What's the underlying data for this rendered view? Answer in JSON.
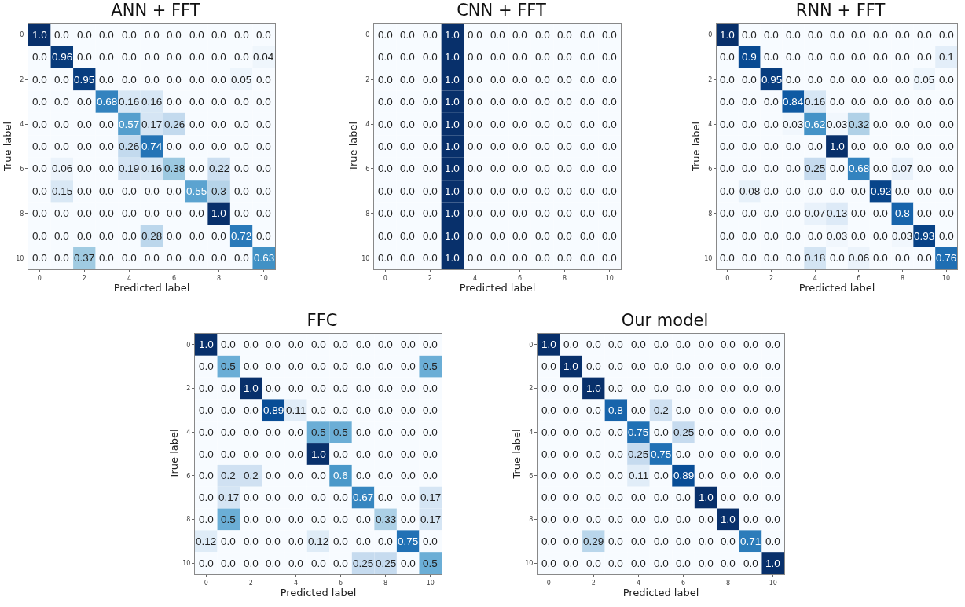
{
  "chart_data": [
    {
      "type": "heatmap",
      "title": "ANN + FFT",
      "xlabel": "Predicted label",
      "ylabel": "True label",
      "categories": [
        "0",
        null,
        "2",
        null,
        "4",
        null,
        "6",
        null,
        "8",
        null,
        "10"
      ],
      "y_categories": [
        "0",
        null,
        "2",
        null,
        "4",
        null,
        "6",
        null,
        "8",
        null,
        "10"
      ],
      "cells": [
        [
          1,
          0,
          0,
          0,
          0,
          0,
          0,
          0,
          0,
          0,
          0
        ],
        [
          0,
          0.96,
          0,
          0,
          0,
          0,
          0,
          0,
          0,
          0,
          0.04
        ],
        [
          0,
          0,
          0.95,
          0,
          0,
          0,
          0,
          0,
          0,
          0.05,
          0
        ],
        [
          0,
          0,
          0,
          0.68,
          0.16,
          0.16,
          0,
          0,
          0,
          0,
          0
        ],
        [
          0,
          0,
          0,
          0,
          0.57,
          0.17,
          0.26,
          0,
          0,
          0,
          0
        ],
        [
          0,
          0,
          0,
          0,
          0.26,
          0.74,
          0,
          0,
          0,
          0,
          0
        ],
        [
          0,
          0.06,
          0,
          0,
          0.19,
          0.16,
          0.38,
          0,
          0.22,
          0,
          0
        ],
        [
          0,
          0.15,
          0,
          0,
          0,
          0,
          0,
          0.55,
          0.3,
          0,
          0
        ],
        [
          0,
          0,
          0,
          0,
          0,
          0,
          0,
          0,
          1,
          0,
          0
        ],
        [
          0,
          0,
          0,
          0,
          0,
          0.28,
          0,
          0,
          0,
          0.72,
          0
        ],
        [
          0,
          0,
          0.37,
          0,
          0,
          0,
          0,
          0,
          0,
          0,
          0.63
        ]
      ],
      "cell_labels": [
        [
          "1.0",
          "0.0",
          "0.0",
          "0.0",
          "0.0",
          "0.0",
          "0.0",
          "0.0",
          "0.0",
          "0.0",
          "0.0"
        ],
        [
          "0.0",
          "0.96",
          "0.0",
          "0.0",
          "0.0",
          "0.0",
          "0.0",
          "0.0",
          "0.0",
          "0.0",
          "0.04"
        ],
        [
          "0.0",
          "0.0",
          "0.95",
          "0.0",
          "0.0",
          "0.0",
          "0.0",
          "0.0",
          "0.0",
          "0.05",
          "0.0"
        ],
        [
          "0.0",
          "0.0",
          "0.0",
          "0.68",
          "0.16",
          "0.16",
          "0.0",
          "0.0",
          "0.0",
          "0.0",
          "0.0"
        ],
        [
          "0.0",
          "0.0",
          "0.0",
          "0.0",
          "0.57",
          "0.17",
          "0.26",
          "0.0",
          "0.0",
          "0.0",
          "0.0"
        ],
        [
          "0.0",
          "0.0",
          "0.0",
          "0.0",
          "0.26",
          "0.74",
          "0.0",
          "0.0",
          "0.0",
          "0.0",
          "0.0"
        ],
        [
          "0.0",
          "0.06",
          "0.0",
          "0.0",
          "0.19",
          "0.16",
          "0.38",
          "0.0",
          "0.22",
          "0.0",
          "0.0"
        ],
        [
          "0.0",
          "0.15",
          "0.0",
          "0.0",
          "0.0",
          "0.0",
          "0.0",
          "0.55",
          "0.3",
          "0.0",
          "0.0"
        ],
        [
          "0.0",
          "0.0",
          "0.0",
          "0.0",
          "0.0",
          "0.0",
          "0.0",
          "0.0",
          "1.0",
          "0.0",
          "0.0"
        ],
        [
          "0.0",
          "0.0",
          "0.0",
          "0.0",
          "0.0",
          "0.28",
          "0.0",
          "0.0",
          "0.0",
          "0.72",
          "0.0"
        ],
        [
          "0.0",
          "0.0",
          "0.37",
          "0.0",
          "0.0",
          "0.0",
          "0.0",
          "0.0",
          "0.0",
          "0.0",
          "0.63"
        ]
      ]
    },
    {
      "type": "heatmap",
      "title": "CNN + FFT",
      "xlabel": "Predicted label",
      "ylabel": "True label",
      "categories": [
        "0",
        null,
        "2",
        null,
        "4",
        null,
        "6",
        null,
        "8",
        null,
        "10"
      ],
      "y_categories": [
        "0",
        null,
        "2",
        null,
        "4",
        null,
        "6",
        null,
        "8",
        null,
        "10"
      ],
      "cells": [
        [
          0,
          0,
          0,
          1,
          0,
          0,
          0,
          0,
          0,
          0,
          0
        ],
        [
          0,
          0,
          0,
          1,
          0,
          0,
          0,
          0,
          0,
          0,
          0
        ],
        [
          0,
          0,
          0,
          1,
          0,
          0,
          0,
          0,
          0,
          0,
          0
        ],
        [
          0,
          0,
          0,
          1,
          0,
          0,
          0,
          0,
          0,
          0,
          0
        ],
        [
          0,
          0,
          0,
          1,
          0,
          0,
          0,
          0,
          0,
          0,
          0
        ],
        [
          0,
          0,
          0,
          1,
          0,
          0,
          0,
          0,
          0,
          0,
          0
        ],
        [
          0,
          0,
          0,
          1,
          0,
          0,
          0,
          0,
          0,
          0,
          0
        ],
        [
          0,
          0,
          0,
          1,
          0,
          0,
          0,
          0,
          0,
          0,
          0
        ],
        [
          0,
          0,
          0,
          1,
          0,
          0,
          0,
          0,
          0,
          0,
          0
        ],
        [
          0,
          0,
          0,
          1,
          0,
          0,
          0,
          0,
          0,
          0,
          0
        ],
        [
          0,
          0,
          0,
          1,
          0,
          0,
          0,
          0,
          0,
          0,
          0
        ]
      ],
      "cell_labels": [
        [
          "0.0",
          "0.0",
          "0.0",
          "1.0",
          "0.0",
          "0.0",
          "0.0",
          "0.0",
          "0.0",
          "0.0",
          "0.0"
        ],
        [
          "0.0",
          "0.0",
          "0.0",
          "1.0",
          "0.0",
          "0.0",
          "0.0",
          "0.0",
          "0.0",
          "0.0",
          "0.0"
        ],
        [
          "0.0",
          "0.0",
          "0.0",
          "1.0",
          "0.0",
          "0.0",
          "0.0",
          "0.0",
          "0.0",
          "0.0",
          "0.0"
        ],
        [
          "0.0",
          "0.0",
          "0.0",
          "1.0",
          "0.0",
          "0.0",
          "0.0",
          "0.0",
          "0.0",
          "0.0",
          "0.0"
        ],
        [
          "0.0",
          "0.0",
          "0.0",
          "1.0",
          "0.0",
          "0.0",
          "0.0",
          "0.0",
          "0.0",
          "0.0",
          "0.0"
        ],
        [
          "0.0",
          "0.0",
          "0.0",
          "1.0",
          "0.0",
          "0.0",
          "0.0",
          "0.0",
          "0.0",
          "0.0",
          "0.0"
        ],
        [
          "0.0",
          "0.0",
          "0.0",
          "1.0",
          "0.0",
          "0.0",
          "0.0",
          "0.0",
          "0.0",
          "0.0",
          "0.0"
        ],
        [
          "0.0",
          "0.0",
          "0.0",
          "1.0",
          "0.0",
          "0.0",
          "0.0",
          "0.0",
          "0.0",
          "0.0",
          "0.0"
        ],
        [
          "0.0",
          "0.0",
          "0.0",
          "1.0",
          "0.0",
          "0.0",
          "0.0",
          "0.0",
          "0.0",
          "0.0",
          "0.0"
        ],
        [
          "0.0",
          "0.0",
          "0.0",
          "1.0",
          "0.0",
          "0.0",
          "0.0",
          "0.0",
          "0.0",
          "0.0",
          "0.0"
        ],
        [
          "0.0",
          "0.0",
          "0.0",
          "1.0",
          "0.0",
          "0.0",
          "0.0",
          "0.0",
          "0.0",
          "0.0",
          "0.0"
        ]
      ]
    },
    {
      "type": "heatmap",
      "title": "RNN + FFT",
      "xlabel": "Predicted label",
      "ylabel": "True label",
      "categories": [
        "0",
        null,
        "2",
        null,
        "4",
        null,
        "6",
        null,
        "8",
        null,
        "10"
      ],
      "y_categories": [
        "0",
        null,
        "2",
        null,
        "4",
        null,
        "6",
        null,
        "8",
        null,
        "10"
      ],
      "cells": [
        [
          1,
          0,
          0,
          0,
          0,
          0,
          0,
          0,
          0,
          0,
          0
        ],
        [
          0,
          0.9,
          0,
          0,
          0,
          0,
          0,
          0,
          0,
          0,
          0.1
        ],
        [
          0,
          0,
          0.95,
          0,
          0,
          0,
          0,
          0,
          0,
          0.05,
          0
        ],
        [
          0,
          0,
          0,
          0.84,
          0.16,
          0,
          0,
          0,
          0,
          0,
          0
        ],
        [
          0,
          0,
          0,
          0.03,
          0.62,
          0.03,
          0.32,
          0,
          0,
          0,
          0
        ],
        [
          0,
          0,
          0,
          0,
          0,
          1,
          0,
          0,
          0,
          0,
          0
        ],
        [
          0,
          0,
          0,
          0,
          0.25,
          0,
          0.68,
          0,
          0.07,
          0,
          0
        ],
        [
          0,
          0.08,
          0,
          0,
          0,
          0,
          0,
          0.92,
          0,
          0,
          0
        ],
        [
          0,
          0,
          0,
          0,
          0.07,
          0.13,
          0,
          0,
          0.8,
          0,
          0
        ],
        [
          0,
          0,
          0,
          0,
          0,
          0.03,
          0,
          0,
          0.03,
          0.93,
          0
        ],
        [
          0,
          0,
          0,
          0,
          0.18,
          0,
          0.06,
          0,
          0,
          0,
          0.76
        ]
      ],
      "cell_labels": [
        [
          "1.0",
          "0.0",
          "0.0",
          "0.0",
          "0.0",
          "0.0",
          "0.0",
          "0.0",
          "0.0",
          "0.0",
          "0.0"
        ],
        [
          "0.0",
          "0.9",
          "0.0",
          "0.0",
          "0.0",
          "0.0",
          "0.0",
          "0.0",
          "0.0",
          "0.0",
          "0.1"
        ],
        [
          "0.0",
          "0.0",
          "0.95",
          "0.0",
          "0.0",
          "0.0",
          "0.0",
          "0.0",
          "0.0",
          "0.05",
          "0.0"
        ],
        [
          "0.0",
          "0.0",
          "0.0",
          "0.84",
          "0.16",
          "0.0",
          "0.0",
          "0.0",
          "0.0",
          "0.0",
          "0.0"
        ],
        [
          "0.0",
          "0.0",
          "0.0",
          "0.03",
          "0.62",
          "0.03",
          "0.32",
          "0.0",
          "0.0",
          "0.0",
          "0.0"
        ],
        [
          "0.0",
          "0.0",
          "0.0",
          "0.0",
          "0.0",
          "1.0",
          "0.0",
          "0.0",
          "0.0",
          "0.0",
          "0.0"
        ],
        [
          "0.0",
          "0.0",
          "0.0",
          "0.0",
          "0.25",
          "0.0",
          "0.68",
          "0.0",
          "0.07",
          "0.0",
          "0.0"
        ],
        [
          "0.0",
          "0.08",
          "0.0",
          "0.0",
          "0.0",
          "0.0",
          "0.0",
          "0.92",
          "0.0",
          "0.0",
          "0.0"
        ],
        [
          "0.0",
          "0.0",
          "0.0",
          "0.0",
          "0.07",
          "0.13",
          "0.0",
          "0.0",
          "0.8",
          "0.0",
          "0.0"
        ],
        [
          "0.0",
          "0.0",
          "0.0",
          "0.0",
          "0.0",
          "0.03",
          "0.0",
          "0.0",
          "0.03",
          "0.93",
          "0.0"
        ],
        [
          "0.0",
          "0.0",
          "0.0",
          "0.0",
          "0.18",
          "0.0",
          "0.06",
          "0.0",
          "0.0",
          "0.0",
          "0.76"
        ]
      ]
    },
    {
      "type": "heatmap",
      "title": "FFC",
      "xlabel": "Predicted label",
      "ylabel": "True label",
      "categories": [
        "0",
        null,
        "2",
        null,
        "4",
        null,
        "6",
        null,
        "8",
        null,
        "10"
      ],
      "y_categories": [
        "0",
        null,
        "2",
        null,
        "4",
        null,
        "6",
        null,
        "8",
        null,
        "10"
      ],
      "cells": [
        [
          1,
          0,
          0,
          0,
          0,
          0,
          0,
          0,
          0,
          0,
          0
        ],
        [
          0,
          0.5,
          0,
          0,
          0,
          0,
          0,
          0,
          0,
          0,
          0.5
        ],
        [
          0,
          0,
          1,
          0,
          0,
          0,
          0,
          0,
          0,
          0,
          0
        ],
        [
          0,
          0,
          0,
          0.89,
          0.11,
          0,
          0,
          0,
          0,
          0,
          0
        ],
        [
          0,
          0,
          0,
          0,
          0,
          0.5,
          0.5,
          0,
          0,
          0,
          0
        ],
        [
          0,
          0,
          0,
          0,
          0,
          1,
          0,
          0,
          0,
          0,
          0
        ],
        [
          0,
          0.2,
          0.2,
          0,
          0,
          0,
          0.6,
          0,
          0,
          0,
          0
        ],
        [
          0,
          0.17,
          0,
          0,
          0,
          0,
          0,
          0.67,
          0,
          0,
          0.17
        ],
        [
          0,
          0.5,
          0,
          0,
          0,
          0,
          0,
          0,
          0.33,
          0,
          0.17
        ],
        [
          0.12,
          0,
          0,
          0,
          0,
          0.12,
          0,
          0,
          0,
          0.75,
          0
        ],
        [
          0,
          0,
          0,
          0,
          0,
          0,
          0,
          0.25,
          0.25,
          0,
          0.5
        ]
      ],
      "cell_labels": [
        [
          "1.0",
          "0.0",
          "0.0",
          "0.0",
          "0.0",
          "0.0",
          "0.0",
          "0.0",
          "0.0",
          "0.0",
          "0.0"
        ],
        [
          "0.0",
          "0.5",
          "0.0",
          "0.0",
          "0.0",
          "0.0",
          "0.0",
          "0.0",
          "0.0",
          "0.0",
          "0.5"
        ],
        [
          "0.0",
          "0.0",
          "1.0",
          "0.0",
          "0.0",
          "0.0",
          "0.0",
          "0.0",
          "0.0",
          "0.0",
          "0.0"
        ],
        [
          "0.0",
          "0.0",
          "0.0",
          "0.89",
          "0.11",
          "0.0",
          "0.0",
          "0.0",
          "0.0",
          "0.0",
          "0.0"
        ],
        [
          "0.0",
          "0.0",
          "0.0",
          "0.0",
          "0.0",
          "0.5",
          "0.5",
          "0.0",
          "0.0",
          "0.0",
          "0.0"
        ],
        [
          "0.0",
          "0.0",
          "0.0",
          "0.0",
          "0.0",
          "1.0",
          "0.0",
          "0.0",
          "0.0",
          "0.0",
          "0.0"
        ],
        [
          "0.0",
          "0.2",
          "0.2",
          "0.0",
          "0.0",
          "0.0",
          "0.6",
          "0.0",
          "0.0",
          "0.0",
          "0.0"
        ],
        [
          "0.0",
          "0.17",
          "0.0",
          "0.0",
          "0.0",
          "0.0",
          "0.0",
          "0.67",
          "0.0",
          "0.0",
          "0.17"
        ],
        [
          "0.0",
          "0.5",
          "0.0",
          "0.0",
          "0.0",
          "0.0",
          "0.0",
          "0.0",
          "0.33",
          "0.0",
          "0.17"
        ],
        [
          "0.12",
          "0.0",
          "0.0",
          "0.0",
          "0.0",
          "0.12",
          "0.0",
          "0.0",
          "0.0",
          "0.75",
          "0.0"
        ],
        [
          "0.0",
          "0.0",
          "0.0",
          "0.0",
          "0.0",
          "0.0",
          "0.0",
          "0.25",
          "0.25",
          "0.0",
          "0.5"
        ]
      ]
    },
    {
      "type": "heatmap",
      "title": "Our model",
      "xlabel": "Predicted label",
      "ylabel": "True label",
      "categories": [
        "0",
        null,
        "2",
        null,
        "4",
        null,
        "6",
        null,
        "8",
        null,
        "10"
      ],
      "y_categories": [
        "0",
        null,
        "2",
        null,
        "4",
        null,
        "6",
        null,
        "8",
        null,
        "10"
      ],
      "cells": [
        [
          1,
          0,
          0,
          0,
          0,
          0,
          0,
          0,
          0,
          0,
          0
        ],
        [
          0,
          1,
          0,
          0,
          0,
          0,
          0,
          0,
          0,
          0,
          0
        ],
        [
          0,
          0,
          1,
          0,
          0,
          0,
          0,
          0,
          0,
          0,
          0
        ],
        [
          0,
          0,
          0,
          0.8,
          0,
          0.2,
          0,
          0,
          0,
          0,
          0
        ],
        [
          0,
          0,
          0,
          0,
          0.75,
          0,
          0.25,
          0,
          0,
          0,
          0
        ],
        [
          0,
          0,
          0,
          0,
          0.25,
          0.75,
          0,
          0,
          0,
          0,
          0
        ],
        [
          0,
          0,
          0,
          0,
          0.11,
          0,
          0.89,
          0,
          0,
          0,
          0
        ],
        [
          0,
          0,
          0,
          0,
          0,
          0,
          0,
          1,
          0,
          0,
          0
        ],
        [
          0,
          0,
          0,
          0,
          0,
          0,
          0,
          0,
          1,
          0,
          0
        ],
        [
          0,
          0,
          0.29,
          0,
          0,
          0,
          0,
          0,
          0,
          0.71,
          0
        ],
        [
          0,
          0,
          0,
          0,
          0,
          0,
          0,
          0,
          0,
          0,
          1
        ]
      ],
      "cell_labels": [
        [
          "1.0",
          "0.0",
          "0.0",
          "0.0",
          "0.0",
          "0.0",
          "0.0",
          "0.0",
          "0.0",
          "0.0",
          "0.0"
        ],
        [
          "0.0",
          "1.0",
          "0.0",
          "0.0",
          "0.0",
          "0.0",
          "0.0",
          "0.0",
          "0.0",
          "0.0",
          "0.0"
        ],
        [
          "0.0",
          "0.0",
          "1.0",
          "0.0",
          "0.0",
          "0.0",
          "0.0",
          "0.0",
          "0.0",
          "0.0",
          "0.0"
        ],
        [
          "0.0",
          "0.0",
          "0.0",
          "0.8",
          "0.0",
          "0.2",
          "0.0",
          "0.0",
          "0.0",
          "0.0",
          "0.0"
        ],
        [
          "0.0",
          "0.0",
          "0.0",
          "0.0",
          "0.75",
          "0.0",
          "0.25",
          "0.0",
          "0.0",
          "0.0",
          "0.0"
        ],
        [
          "0.0",
          "0.0",
          "0.0",
          "0.0",
          "0.25",
          "0.75",
          "0.0",
          "0.0",
          "0.0",
          "0.0",
          "0.0"
        ],
        [
          "0.0",
          "0.0",
          "0.0",
          "0.0",
          "0.11",
          "0.0",
          "0.89",
          "0.0",
          "0.0",
          "0.0",
          "0.0"
        ],
        [
          "0.0",
          "0.0",
          "0.0",
          "0.0",
          "0.0",
          "0.0",
          "0.0",
          "1.0",
          "0.0",
          "0.0",
          "0.0"
        ],
        [
          "0.0",
          "0.0",
          "0.0",
          "0.0",
          "0.0",
          "0.0",
          "0.0",
          "0.0",
          "1.0",
          "0.0",
          "0.0"
        ],
        [
          "0.0",
          "0.0",
          "0.29",
          "0.0",
          "0.0",
          "0.0",
          "0.0",
          "0.0",
          "0.0",
          "0.71",
          "0.0"
        ],
        [
          "0.0",
          "0.0",
          "0.0",
          "0.0",
          "0.0",
          "0.0",
          "0.0",
          "0.0",
          "0.0",
          "0.0",
          "1.0"
        ]
      ]
    }
  ]
}
